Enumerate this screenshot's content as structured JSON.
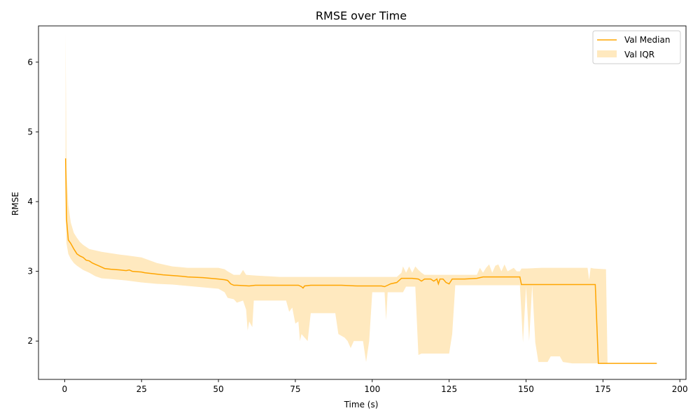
{
  "chart_data": {
    "type": "line",
    "title": "RMSE over Time",
    "xlabel": "Time (s)",
    "ylabel": "RMSE",
    "xlim": [
      -8.5,
      202
    ],
    "ylim": [
      1.45,
      6.52
    ],
    "xticks": [
      0,
      25,
      50,
      75,
      100,
      125,
      150,
      175,
      200
    ],
    "yticks": [
      2,
      3,
      4,
      5,
      6
    ],
    "grid": false,
    "legend": {
      "position": "top-right"
    },
    "colors": {
      "median": "#ffa500",
      "iqr": "#ffe9bf"
    },
    "series": [
      {
        "name": "Val Median",
        "kind": "line",
        "points": [
          [
            0.3,
            4.62
          ],
          [
            0.6,
            3.75
          ],
          [
            1.2,
            3.45
          ],
          [
            2.0,
            3.4
          ],
          [
            3.0,
            3.32
          ],
          [
            4.0,
            3.25
          ],
          [
            5.0,
            3.22
          ],
          [
            6.0,
            3.2
          ],
          [
            7.0,
            3.16
          ],
          [
            8.0,
            3.15
          ],
          [
            9.0,
            3.12
          ],
          [
            10.0,
            3.1
          ],
          [
            11.0,
            3.08
          ],
          [
            12.0,
            3.06
          ],
          [
            13.0,
            3.04
          ],
          [
            15.0,
            3.03
          ],
          [
            18.0,
            3.02
          ],
          [
            20.0,
            3.01
          ],
          [
            21.0,
            3.02
          ],
          [
            22.0,
            3.0
          ],
          [
            25.0,
            2.99
          ],
          [
            26.0,
            2.98
          ],
          [
            28.0,
            2.97
          ],
          [
            30.0,
            2.96
          ],
          [
            32.0,
            2.95
          ],
          [
            35.0,
            2.94
          ],
          [
            38.0,
            2.93
          ],
          [
            40.0,
            2.92
          ],
          [
            45.0,
            2.91
          ],
          [
            50.0,
            2.89
          ],
          [
            52.0,
            2.88
          ],
          [
            53.0,
            2.87
          ],
          [
            54.0,
            2.82
          ],
          [
            55.0,
            2.8
          ],
          [
            56.0,
            2.8
          ],
          [
            60.0,
            2.79
          ],
          [
            62.0,
            2.8
          ],
          [
            65.0,
            2.8
          ],
          [
            70.0,
            2.8
          ],
          [
            76.0,
            2.8
          ],
          [
            77.0,
            2.78
          ],
          [
            77.5,
            2.76
          ],
          [
            78.0,
            2.79
          ],
          [
            80.0,
            2.8
          ],
          [
            85.0,
            2.8
          ],
          [
            90.0,
            2.8
          ],
          [
            95.0,
            2.79
          ],
          [
            100.0,
            2.79
          ],
          [
            103.0,
            2.79
          ],
          [
            104.0,
            2.78
          ],
          [
            105.0,
            2.8
          ],
          [
            106.0,
            2.82
          ],
          [
            108.0,
            2.84
          ],
          [
            109.5,
            2.9
          ],
          [
            113.0,
            2.9
          ],
          [
            115.0,
            2.89
          ],
          [
            116.0,
            2.86
          ],
          [
            117.0,
            2.89
          ],
          [
            119.0,
            2.89
          ],
          [
            120.0,
            2.86
          ],
          [
            121.0,
            2.89
          ],
          [
            121.5,
            2.82
          ],
          [
            122.0,
            2.89
          ],
          [
            123.0,
            2.89
          ],
          [
            124.0,
            2.84
          ],
          [
            125.0,
            2.82
          ],
          [
            126.0,
            2.89
          ],
          [
            130.0,
            2.89
          ],
          [
            134.0,
            2.9
          ],
          [
            136.0,
            2.92
          ],
          [
            140.0,
            2.92
          ],
          [
            145.0,
            2.92
          ],
          [
            148.0,
            2.92
          ],
          [
            148.5,
            2.81
          ],
          [
            150.0,
            2.81
          ],
          [
            155.0,
            2.81
          ],
          [
            160.0,
            2.81
          ],
          [
            165.0,
            2.81
          ],
          [
            170.0,
            2.81
          ],
          [
            172.5,
            2.81
          ],
          [
            173.5,
            1.68
          ],
          [
            180.0,
            1.68
          ],
          [
            185.0,
            1.68
          ],
          [
            190.0,
            1.68
          ],
          [
            192.5,
            1.68
          ]
        ]
      },
      {
        "name": "Val IQR",
        "kind": "band",
        "upper": [
          [
            0.3,
            6.42
          ],
          [
            0.6,
            4.5
          ],
          [
            1.2,
            3.95
          ],
          [
            2.0,
            3.7
          ],
          [
            3.0,
            3.55
          ],
          [
            4.0,
            3.48
          ],
          [
            5.0,
            3.42
          ],
          [
            6.0,
            3.38
          ],
          [
            7.0,
            3.35
          ],
          [
            8.0,
            3.32
          ],
          [
            10.0,
            3.3
          ],
          [
            12.0,
            3.28
          ],
          [
            15.0,
            3.26
          ],
          [
            18.0,
            3.24
          ],
          [
            20.0,
            3.23
          ],
          [
            25.0,
            3.2
          ],
          [
            30.0,
            3.12
          ],
          [
            35.0,
            3.07
          ],
          [
            40.0,
            3.05
          ],
          [
            45.0,
            3.05
          ],
          [
            50.0,
            3.05
          ],
          [
            52.0,
            3.03
          ],
          [
            53.0,
            3.0
          ],
          [
            55.0,
            2.95
          ],
          [
            57.0,
            2.95
          ],
          [
            58.0,
            3.02
          ],
          [
            59.0,
            2.95
          ],
          [
            62.0,
            2.94
          ],
          [
            70.0,
            2.92
          ],
          [
            75.0,
            2.92
          ],
          [
            80.0,
            2.92
          ],
          [
            85.0,
            2.92
          ],
          [
            90.0,
            2.92
          ],
          [
            100.0,
            2.92
          ],
          [
            108.0,
            2.92
          ],
          [
            109.5,
            2.98
          ],
          [
            110.0,
            3.07
          ],
          [
            111.0,
            2.98
          ],
          [
            112.0,
            3.07
          ],
          [
            113.0,
            2.98
          ],
          [
            114.0,
            3.07
          ],
          [
            115.0,
            3.02
          ],
          [
            116.0,
            2.98
          ],
          [
            117.0,
            2.95
          ],
          [
            125.0,
            2.95
          ],
          [
            130.0,
            2.95
          ],
          [
            134.0,
            2.95
          ],
          [
            135.0,
            3.05
          ],
          [
            136.0,
            2.98
          ],
          [
            137.0,
            3.05
          ],
          [
            138.0,
            3.1
          ],
          [
            139.0,
            2.98
          ],
          [
            140.0,
            3.08
          ],
          [
            141.0,
            3.1
          ],
          [
            142.0,
            3.0
          ],
          [
            143.0,
            3.1
          ],
          [
            144.0,
            3.0
          ],
          [
            146.0,
            3.05
          ],
          [
            147.0,
            3.0
          ],
          [
            148.0,
            3.0
          ],
          [
            148.5,
            3.04
          ],
          [
            150.0,
            3.04
          ],
          [
            155.0,
            3.05
          ],
          [
            160.0,
            3.05
          ],
          [
            165.0,
            3.05
          ],
          [
            170.0,
            3.05
          ],
          [
            170.5,
            2.88
          ],
          [
            171.0,
            3.05
          ],
          [
            172.0,
            3.04
          ],
          [
            176.0,
            3.03
          ],
          [
            176.5,
            1.68
          ],
          [
            192.5,
            1.68
          ]
        ],
        "lower": [
          [
            0.3,
            3.85
          ],
          [
            0.6,
            3.4
          ],
          [
            1.2,
            3.25
          ],
          [
            2.0,
            3.18
          ],
          [
            3.0,
            3.12
          ],
          [
            4.0,
            3.08
          ],
          [
            5.0,
            3.05
          ],
          [
            6.0,
            3.02
          ],
          [
            8.0,
            2.98
          ],
          [
            10.0,
            2.93
          ],
          [
            12.0,
            2.9
          ],
          [
            15.0,
            2.89
          ],
          [
            20.0,
            2.87
          ],
          [
            25.0,
            2.84
          ],
          [
            30.0,
            2.82
          ],
          [
            35.0,
            2.81
          ],
          [
            40.0,
            2.79
          ],
          [
            45.0,
            2.77
          ],
          [
            50.0,
            2.75
          ],
          [
            52.0,
            2.7
          ],
          [
            53.0,
            2.62
          ],
          [
            55.0,
            2.6
          ],
          [
            56.0,
            2.55
          ],
          [
            58.0,
            2.58
          ],
          [
            59.0,
            2.45
          ],
          [
            59.5,
            2.15
          ],
          [
            60.0,
            2.28
          ],
          [
            61.0,
            2.2
          ],
          [
            61.5,
            2.58
          ],
          [
            65.0,
            2.58
          ],
          [
            70.0,
            2.58
          ],
          [
            72.0,
            2.58
          ],
          [
            73.0,
            2.42
          ],
          [
            74.0,
            2.48
          ],
          [
            75.0,
            2.25
          ],
          [
            76.0,
            2.28
          ],
          [
            76.5,
            2.0
          ],
          [
            77.0,
            2.1
          ],
          [
            78.0,
            2.05
          ],
          [
            79.0,
            2.0
          ],
          [
            80.0,
            2.4
          ],
          [
            85.0,
            2.4
          ],
          [
            88.0,
            2.4
          ],
          [
            89.0,
            2.1
          ],
          [
            91.0,
            2.05
          ],
          [
            92.0,
            2.0
          ],
          [
            93.0,
            1.9
          ],
          [
            94.0,
            2.0
          ],
          [
            97.0,
            2.0
          ],
          [
            98.0,
            1.7
          ],
          [
            99.0,
            2.0
          ],
          [
            100.0,
            2.7
          ],
          [
            104.0,
            2.7
          ],
          [
            104.5,
            2.3
          ],
          [
            105.0,
            2.7
          ],
          [
            110.0,
            2.7
          ],
          [
            111.0,
            2.78
          ],
          [
            114.0,
            2.78
          ],
          [
            115.0,
            1.8
          ],
          [
            116.0,
            1.82
          ],
          [
            120.0,
            1.82
          ],
          [
            125.0,
            1.82
          ],
          [
            126.0,
            2.1
          ],
          [
            127.0,
            2.8
          ],
          [
            135.0,
            2.8
          ],
          [
            145.0,
            2.8
          ],
          [
            148.0,
            2.8
          ],
          [
            148.5,
            2.4
          ],
          [
            149.0,
            1.98
          ],
          [
            150.0,
            2.78
          ],
          [
            151.0,
            2.0
          ],
          [
            152.0,
            2.8
          ],
          [
            153.0,
            1.98
          ],
          [
            154.0,
            1.7
          ],
          [
            157.0,
            1.7
          ],
          [
            158.0,
            1.78
          ],
          [
            161.0,
            1.78
          ],
          [
            162.0,
            1.7
          ],
          [
            165.0,
            1.68
          ],
          [
            175.0,
            1.68
          ],
          [
            192.5,
            1.68
          ]
        ]
      }
    ]
  }
}
